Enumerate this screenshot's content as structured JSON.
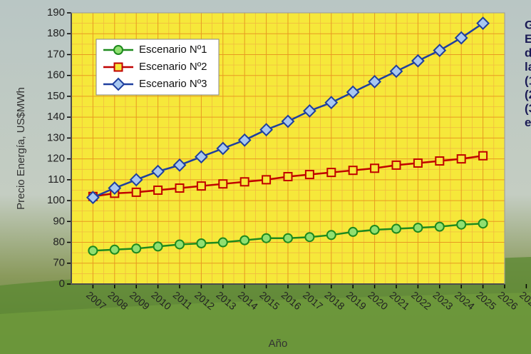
{
  "chart_data": {
    "type": "line",
    "xlabel": "Año",
    "ylabel": "Precio Energía, US$MWh",
    "x": [
      2007,
      2008,
      2009,
      2010,
      2011,
      2012,
      2013,
      2014,
      2015,
      2016,
      2017,
      2018,
      2019,
      2020,
      2021,
      2022,
      2023,
      2024,
      2025
    ],
    "series": [
      {
        "name": "Escenario Nº1",
        "color": "#1e8a1e",
        "values": [
          76,
          76.5,
          77,
          78,
          79,
          79.5,
          80,
          81,
          82,
          82,
          82.5,
          83.5,
          85,
          86,
          86.5,
          87,
          87.5,
          88.5,
          89
        ]
      },
      {
        "name": "Escenario Nº2",
        "color": "#c00000",
        "values": [
          102,
          103.5,
          104,
          105,
          106,
          107,
          108,
          109,
          110,
          111.5,
          112.5,
          113.5,
          114.5,
          115.5,
          117,
          118,
          119,
          120,
          121.5
        ]
      },
      {
        "name": "Escenario Nº3",
        "color": "#1f3f9f",
        "values": [
          101.5,
          106,
          110,
          114,
          117,
          121,
          125,
          129,
          134,
          138,
          143,
          147,
          152,
          157,
          162,
          167,
          172,
          178,
          185
        ]
      }
    ],
    "xlim": [
      2006,
      2026
    ],
    "xticks": [
      2007,
      2008,
      2009,
      2010,
      2011,
      2012,
      2013,
      2014,
      2015,
      2016,
      2017,
      2018,
      2019,
      2020,
      2021,
      2022,
      2023,
      2024,
      2025,
      2026,
      2027
    ],
    "ylim": [
      0,
      190
    ],
    "yticks": [
      0,
      70,
      80,
      90,
      100,
      110,
      120,
      130,
      140,
      150,
      160,
      170,
      180,
      190
    ],
    "grid": true,
    "legend": "upper left",
    "side_text": [
      "G",
      "E",
      "d",
      "la",
      "(1",
      "(2",
      "(3",
      "e"
    ]
  }
}
